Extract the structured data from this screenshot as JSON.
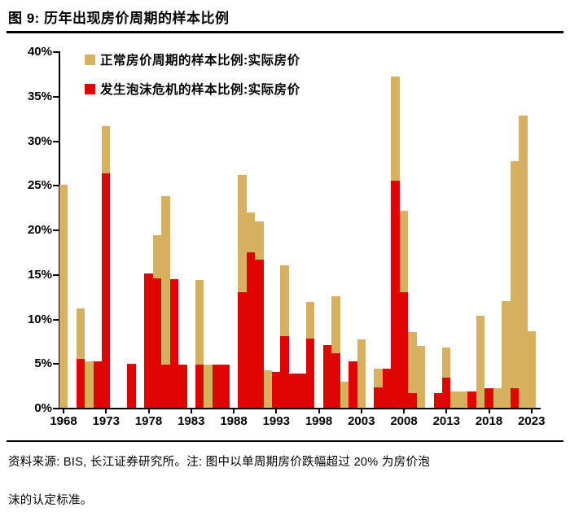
{
  "title": "图 9: 历年出现房价周期的样本比例",
  "footnote_line1": "资料来源: BIS, 长江证券研究所。注: 图中以单周期房价跌幅超过 20% 为房价泡",
  "footnote_line2": "沫的认定标准。",
  "colors": {
    "normal_tan": "#D8B15F",
    "bubble_red": "#E00404",
    "axis": "#000000"
  },
  "legend": {
    "items": [
      {
        "label": "正常房价周期的样本比例:实际房价",
        "color": "#D8B15F"
      },
      {
        "label": "发生泡沫危机的样本比例:实际房价",
        "color": "#E00404"
      }
    ]
  },
  "y_axis": {
    "tick_labels": [
      "0%",
      "5%",
      "10%",
      "15%",
      "20%",
      "25%",
      "30%",
      "35%",
      "40%"
    ],
    "min": 0,
    "max": 40,
    "step": 5
  },
  "x_axis": {
    "tick_labels": [
      "1968",
      "1973",
      "1978",
      "1983",
      "1988",
      "1993",
      "1998",
      "2003",
      "2008",
      "2013",
      "2018",
      "2023"
    ],
    "first_year": 1968,
    "last_year": 2023
  },
  "chart_data": {
    "type": "bar",
    "subtype": "stacked",
    "title": "历年出现房价周期的样本比例",
    "xlabel": "",
    "ylabel": "",
    "ylim": [
      0,
      40
    ],
    "grid": false,
    "legend_position": "top-left-inside",
    "x": [
      1968,
      1969,
      1970,
      1971,
      1972,
      1973,
      1974,
      1975,
      1976,
      1977,
      1978,
      1979,
      1980,
      1981,
      1982,
      1983,
      1984,
      1985,
      1986,
      1987,
      1988,
      1989,
      1990,
      1991,
      1992,
      1993,
      1994,
      1995,
      1996,
      1997,
      1998,
      1999,
      2000,
      2001,
      2002,
      2003,
      2004,
      2005,
      2006,
      2007,
      2008,
      2009,
      2010,
      2011,
      2012,
      2013,
      2014,
      2015,
      2016,
      2017,
      2018,
      2019,
      2020,
      2021,
      2022,
      2023
    ],
    "series": [
      {
        "name": "发生泡沫危机的样本比例:实际房价",
        "color": "#E00404",
        "stack_order": "bottom",
        "values": [
          0,
          0,
          5.5,
          0,
          5.2,
          26.3,
          0,
          0,
          4.9,
          0,
          15.1,
          14.5,
          4.8,
          14.4,
          4.8,
          0,
          4.8,
          0,
          4.8,
          4.8,
          0,
          13.0,
          17.4,
          16.6,
          0,
          4.0,
          8.0,
          3.8,
          3.8,
          7.8,
          0,
          7.0,
          6.1,
          0,
          5.2,
          0,
          0,
          2.3,
          4.4,
          25.5,
          13.0,
          1.6,
          0,
          0,
          1.6,
          3.4,
          0,
          0,
          1.8,
          0,
          2.2,
          0,
          0,
          2.2,
          0,
          0
        ]
      },
      {
        "name": "正常房价周期的样本比例:实际房价",
        "color": "#D8B15F",
        "stack_order": "top",
        "values": [
          25.0,
          0,
          5.6,
          5.2,
          0,
          5.3,
          0,
          0,
          0,
          0,
          0,
          4.9,
          18.9,
          0,
          0,
          0,
          9.5,
          4.8,
          0,
          0,
          0,
          13.1,
          4.5,
          4.3,
          4.2,
          0,
          8.0,
          0,
          0,
          4.1,
          0,
          0,
          6.4,
          2.9,
          0,
          7.7,
          0,
          2.1,
          0,
          11.7,
          9.1,
          6.9,
          6.9,
          0,
          0,
          3.4,
          1.8,
          1.8,
          0,
          10.3,
          0,
          2.2,
          12.0,
          25.5,
          32.8,
          8.6
        ]
      }
    ]
  }
}
